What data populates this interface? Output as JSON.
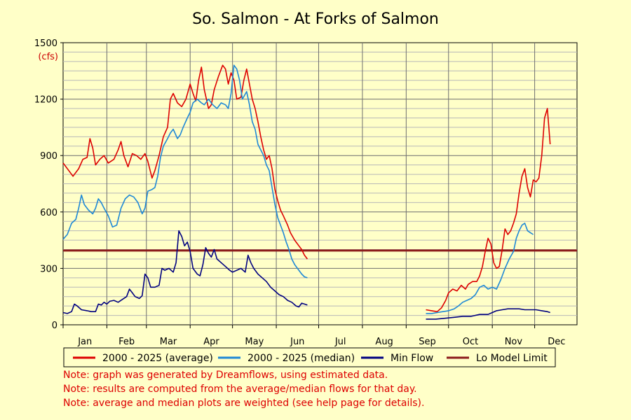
{
  "chart_data": {
    "type": "line",
    "title": "So. Salmon - At Forks of Salmon",
    "unit_label": "(cfs)",
    "ylim": [
      0,
      1500
    ],
    "y_ticks": [
      0,
      300,
      600,
      900,
      1200,
      1500
    ],
    "y_tick_labels": [
      "0",
      "300",
      "600",
      "900",
      "1200",
      "1500"
    ],
    "x_axis_range_days": [
      1,
      365
    ],
    "months": [
      "Jan",
      "Feb",
      "Mar",
      "Apr",
      "May",
      "Jun",
      "Jul",
      "Aug",
      "Sep",
      "Oct",
      "Nov",
      "Dec"
    ],
    "grid": true,
    "legend_placement": "bottom",
    "threshold": {
      "name": "Lo Model Limit",
      "value": 395,
      "color": "#8b1a1a"
    },
    "series": [
      {
        "name": "2000 - 2025 (average)",
        "color": "#dd0000",
        "points": [
          [
            1,
            860
          ],
          [
            5,
            820
          ],
          [
            8,
            790
          ],
          [
            12,
            830
          ],
          [
            15,
            880
          ],
          [
            18,
            890
          ],
          [
            20,
            990
          ],
          [
            22,
            940
          ],
          [
            24,
            850
          ],
          [
            27,
            880
          ],
          [
            30,
            900
          ],
          [
            33,
            860
          ],
          [
            37,
            880
          ],
          [
            40,
            930
          ],
          [
            42,
            975
          ],
          [
            44,
            900
          ],
          [
            47,
            840
          ],
          [
            50,
            910
          ],
          [
            53,
            900
          ],
          [
            56,
            880
          ],
          [
            59,
            910
          ],
          [
            61,
            870
          ],
          [
            64,
            780
          ],
          [
            66,
            820
          ],
          [
            69,
            900
          ],
          [
            72,
            1000
          ],
          [
            75,
            1050
          ],
          [
            77,
            1200
          ],
          [
            79,
            1230
          ],
          [
            82,
            1180
          ],
          [
            85,
            1160
          ],
          [
            88,
            1200
          ],
          [
            91,
            1280
          ],
          [
            93,
            1230
          ],
          [
            95,
            1190
          ],
          [
            97,
            1300
          ],
          [
            99,
            1370
          ],
          [
            101,
            1250
          ],
          [
            104,
            1150
          ],
          [
            106,
            1170
          ],
          [
            108,
            1250
          ],
          [
            111,
            1320
          ],
          [
            114,
            1380
          ],
          [
            116,
            1360
          ],
          [
            118,
            1280
          ],
          [
            120,
            1340
          ],
          [
            122,
            1300
          ],
          [
            124,
            1200
          ],
          [
            127,
            1210
          ],
          [
            129,
            1300
          ],
          [
            131,
            1360
          ],
          [
            133,
            1280
          ],
          [
            135,
            1200
          ],
          [
            137,
            1150
          ],
          [
            139,
            1080
          ],
          [
            141,
            1000
          ],
          [
            143,
            930
          ],
          [
            145,
            880
          ],
          [
            147,
            900
          ],
          [
            149,
            830
          ],
          [
            151,
            720
          ],
          [
            153,
            660
          ],
          [
            155,
            610
          ],
          [
            157,
            580
          ],
          [
            160,
            530
          ],
          [
            162,
            490
          ],
          [
            165,
            450
          ],
          [
            168,
            420
          ],
          [
            170,
            400
          ],
          [
            172,
            370
          ],
          [
            174,
            350
          ]
        ],
        "gaps_after_day": 174,
        "points_fall": [
          [
            258,
            80
          ],
          [
            262,
            75
          ],
          [
            266,
            70
          ],
          [
            269,
            90
          ],
          [
            272,
            130
          ],
          [
            274,
            170
          ],
          [
            277,
            190
          ],
          [
            280,
            180
          ],
          [
            283,
            210
          ],
          [
            286,
            190
          ],
          [
            288,
            215
          ],
          [
            291,
            230
          ],
          [
            294,
            230
          ],
          [
            296,
            260
          ],
          [
            298,
            310
          ],
          [
            300,
            390
          ],
          [
            302,
            460
          ],
          [
            304,
            430
          ],
          [
            306,
            330
          ],
          [
            308,
            300
          ],
          [
            310,
            310
          ],
          [
            312,
            400
          ],
          [
            314,
            510
          ],
          [
            316,
            480
          ],
          [
            318,
            500
          ],
          [
            320,
            540
          ],
          [
            322,
            590
          ],
          [
            324,
            700
          ],
          [
            326,
            790
          ],
          [
            328,
            830
          ],
          [
            330,
            730
          ],
          [
            332,
            680
          ],
          [
            334,
            770
          ],
          [
            336,
            760
          ],
          [
            338,
            780
          ],
          [
            340,
            900
          ],
          [
            342,
            1100
          ],
          [
            344,
            1150
          ],
          [
            346,
            960
          ]
        ]
      },
      {
        "name": "2000 - 2025 (median)",
        "color": "#1e88d6",
        "points": [
          [
            1,
            455
          ],
          [
            4,
            480
          ],
          [
            7,
            540
          ],
          [
            10,
            560
          ],
          [
            12,
            620
          ],
          [
            14,
            690
          ],
          [
            16,
            640
          ],
          [
            19,
            610
          ],
          [
            22,
            590
          ],
          [
            24,
            620
          ],
          [
            26,
            670
          ],
          [
            28,
            650
          ],
          [
            30,
            620
          ],
          [
            33,
            580
          ],
          [
            36,
            520
          ],
          [
            39,
            530
          ],
          [
            42,
            620
          ],
          [
            45,
            670
          ],
          [
            48,
            690
          ],
          [
            51,
            680
          ],
          [
            54,
            650
          ],
          [
            57,
            590
          ],
          [
            59,
            620
          ],
          [
            61,
            710
          ],
          [
            64,
            720
          ],
          [
            66,
            730
          ],
          [
            68,
            790
          ],
          [
            70,
            890
          ],
          [
            72,
            950
          ],
          [
            75,
            990
          ],
          [
            77,
            1020
          ],
          [
            79,
            1040
          ],
          [
            82,
            990
          ],
          [
            84,
            1010
          ],
          [
            86,
            1050
          ],
          [
            89,
            1100
          ],
          [
            91,
            1130
          ],
          [
            93,
            1180
          ],
          [
            96,
            1200
          ],
          [
            99,
            1180
          ],
          [
            101,
            1170
          ],
          [
            104,
            1200
          ],
          [
            107,
            1170
          ],
          [
            110,
            1150
          ],
          [
            113,
            1180
          ],
          [
            116,
            1170
          ],
          [
            118,
            1150
          ],
          [
            120,
            1230
          ],
          [
            122,
            1380
          ],
          [
            124,
            1360
          ],
          [
            126,
            1300
          ],
          [
            128,
            1200
          ],
          [
            131,
            1240
          ],
          [
            133,
            1170
          ],
          [
            135,
            1080
          ],
          [
            137,
            1040
          ],
          [
            139,
            960
          ],
          [
            141,
            930
          ],
          [
            143,
            900
          ],
          [
            145,
            850
          ],
          [
            147,
            820
          ],
          [
            149,
            730
          ],
          [
            151,
            640
          ],
          [
            153,
            570
          ],
          [
            155,
            530
          ],
          [
            157,
            490
          ],
          [
            159,
            440
          ],
          [
            161,
            400
          ],
          [
            163,
            350
          ],
          [
            165,
            320
          ],
          [
            168,
            290
          ],
          [
            170,
            270
          ],
          [
            172,
            255
          ],
          [
            174,
            250
          ]
        ],
        "points_fall": [
          [
            258,
            60
          ],
          [
            262,
            60
          ],
          [
            266,
            65
          ],
          [
            270,
            70
          ],
          [
            274,
            75
          ],
          [
            278,
            85
          ],
          [
            281,
            100
          ],
          [
            284,
            120
          ],
          [
            287,
            130
          ],
          [
            290,
            140
          ],
          [
            293,
            160
          ],
          [
            296,
            200
          ],
          [
            299,
            210
          ],
          [
            302,
            190
          ],
          [
            305,
            200
          ],
          [
            308,
            190
          ],
          [
            311,
            240
          ],
          [
            314,
            300
          ],
          [
            317,
            350
          ],
          [
            320,
            390
          ],
          [
            322,
            460
          ],
          [
            324,
            500
          ],
          [
            326,
            530
          ],
          [
            328,
            540
          ],
          [
            330,
            500
          ],
          [
            332,
            490
          ],
          [
            334,
            480
          ]
        ]
      },
      {
        "name": "Min Flow",
        "color": "#000080",
        "points": [
          [
            1,
            65
          ],
          [
            4,
            60
          ],
          [
            7,
            70
          ],
          [
            9,
            110
          ],
          [
            11,
            100
          ],
          [
            14,
            80
          ],
          [
            18,
            75
          ],
          [
            21,
            70
          ],
          [
            24,
            70
          ],
          [
            26,
            110
          ],
          [
            28,
            105
          ],
          [
            30,
            120
          ],
          [
            32,
            110
          ],
          [
            34,
            125
          ],
          [
            37,
            130
          ],
          [
            40,
            120
          ],
          [
            43,
            135
          ],
          [
            46,
            150
          ],
          [
            48,
            190
          ],
          [
            50,
            170
          ],
          [
            52,
            150
          ],
          [
            55,
            140
          ],
          [
            57,
            155
          ],
          [
            59,
            270
          ],
          [
            61,
            250
          ],
          [
            63,
            200
          ],
          [
            66,
            200
          ],
          [
            69,
            210
          ],
          [
            71,
            300
          ],
          [
            73,
            290
          ],
          [
            76,
            300
          ],
          [
            79,
            280
          ],
          [
            81,
            330
          ],
          [
            83,
            500
          ],
          [
            85,
            470
          ],
          [
            87,
            420
          ],
          [
            89,
            440
          ],
          [
            91,
            390
          ],
          [
            93,
            300
          ],
          [
            96,
            270
          ],
          [
            98,
            260
          ],
          [
            100,
            320
          ],
          [
            102,
            410
          ],
          [
            104,
            380
          ],
          [
            106,
            360
          ],
          [
            108,
            400
          ],
          [
            110,
            350
          ],
          [
            113,
            330
          ],
          [
            116,
            310
          ],
          [
            119,
            290
          ],
          [
            121,
            280
          ],
          [
            124,
            290
          ],
          [
            127,
            300
          ],
          [
            130,
            280
          ],
          [
            132,
            370
          ],
          [
            134,
            330
          ],
          [
            136,
            300
          ],
          [
            139,
            270
          ],
          [
            142,
            250
          ],
          [
            145,
            230
          ],
          [
            148,
            200
          ],
          [
            151,
            180
          ],
          [
            154,
            160
          ],
          [
            157,
            150
          ],
          [
            160,
            130
          ],
          [
            163,
            120
          ],
          [
            166,
            100
          ],
          [
            168,
            95
          ],
          [
            170,
            115
          ],
          [
            172,
            110
          ],
          [
            174,
            105
          ]
        ],
        "points_fall": [
          [
            258,
            30
          ],
          [
            265,
            30
          ],
          [
            272,
            35
          ],
          [
            278,
            40
          ],
          [
            284,
            45
          ],
          [
            290,
            45
          ],
          [
            296,
            55
          ],
          [
            302,
            55
          ],
          [
            305,
            65
          ],
          [
            308,
            75
          ],
          [
            312,
            80
          ],
          [
            316,
            85
          ],
          [
            320,
            85
          ],
          [
            324,
            85
          ],
          [
            328,
            80
          ],
          [
            332,
            80
          ],
          [
            336,
            80
          ],
          [
            340,
            75
          ],
          [
            344,
            70
          ],
          [
            346,
            65
          ]
        ]
      }
    ]
  },
  "notes": [
    "Note: graph was generated by Dreamflows, using estimated data.",
    "Note: results are computed from the average/median flows for that day.",
    "Note: average and median plots are weighted (see help page for details)."
  ]
}
